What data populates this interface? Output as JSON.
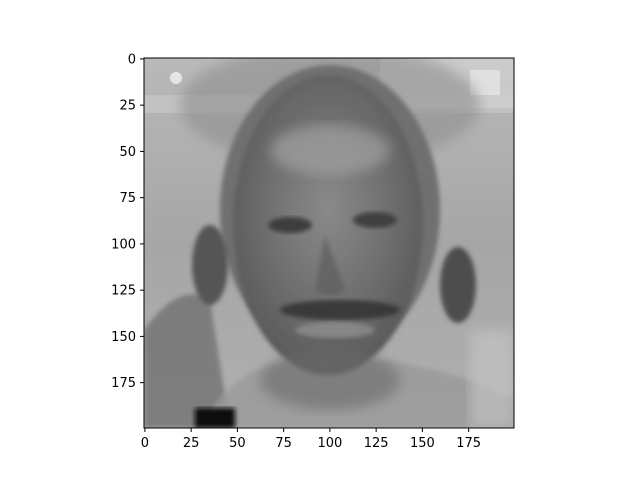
{
  "figure": {
    "colormap": "gray",
    "image_description_icon": "grayscale-face-composite-image",
    "x_axis": {
      "ticks": [
        0,
        25,
        50,
        75,
        100,
        125,
        150,
        175
      ],
      "range": [
        0,
        200
      ]
    },
    "y_axis": {
      "ticks": [
        0,
        25,
        50,
        75,
        100,
        125,
        150,
        175
      ],
      "range": [
        0,
        200
      ],
      "inverted": true
    },
    "grid": false
  }
}
